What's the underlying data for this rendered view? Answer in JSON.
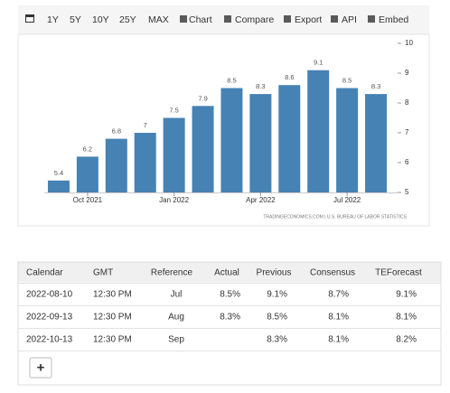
{
  "toolbar": [
    "1Y",
    "5Y",
    "10Y",
    "25Y",
    "MAX",
    "Chart",
    "Compare",
    "Export",
    "API",
    "Embed"
  ],
  "chart_data": {
    "type": "bar",
    "categories": [
      null,
      "Oct 2021",
      null,
      null,
      "Jan 2022",
      null,
      null,
      "Apr 2022",
      null,
      null,
      "Jul 2022",
      null
    ],
    "values": [
      5.4,
      6.2,
      6.8,
      7,
      7.5,
      7.9,
      8.5,
      8.3,
      8.6,
      9.1,
      8.5,
      8.3
    ],
    "color": "#4682b4",
    "ylim": [
      5,
      10
    ],
    "yticks": [
      5,
      6,
      7,
      8,
      9,
      10
    ],
    "source": "TRADINGECONOMICS.COM | U.S. BUREAU OF LABOR STATISTICS"
  },
  "table": {
    "header": [
      "Calendar",
      "GMT",
      "Reference",
      "Actual",
      "Previous",
      "Consensus",
      "TEForecast"
    ],
    "rows": [
      [
        "2022-08-10",
        "12:30 PM",
        "Jul",
        "8.5%",
        "9.1%",
        "8.7%",
        "9.1%"
      ],
      [
        "2022-09-13",
        "12:30 PM",
        "Aug",
        "8.3%",
        "8.5%",
        "8.1%",
        "8.1%"
      ],
      [
        "2022-10-13",
        "12:30 PM",
        "Sep",
        null,
        "8.3%",
        "8.1%",
        "8.2%"
      ]
    ],
    "button": "+"
  }
}
